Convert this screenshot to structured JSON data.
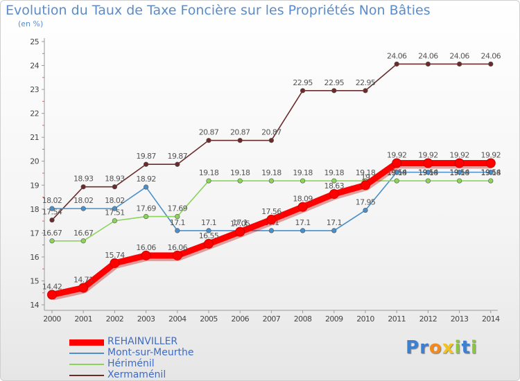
{
  "chart_data": {
    "type": "line",
    "title": "Evolution du Taux de Taxe Foncière sur les Propriétés Non Bâties",
    "ylabel": "(en %)",
    "xlabel": "",
    "ylim": [
      14,
      25
    ],
    "yticks": [
      "14",
      "15",
      "16",
      "17",
      "18",
      "19",
      "20",
      "21",
      "22",
      "23",
      "24",
      "25"
    ],
    "categories": [
      "2000",
      "2001",
      "2002",
      "2003",
      "2004",
      "2005",
      "2006",
      "2007",
      "2008",
      "2009",
      "2010",
      "2011",
      "2012",
      "2013",
      "2014"
    ],
    "series": [
      {
        "name": "Xermaménil",
        "color": "#6b2b2b",
        "values": [
          17.54,
          18.93,
          18.93,
          19.87,
          19.87,
          20.87,
          20.87,
          20.87,
          22.95,
          22.95,
          22.95,
          24.06,
          24.06,
          24.06,
          24.06
        ],
        "labels": [
          "17.54",
          "18.93",
          "18.93",
          "19.87",
          "19.87",
          "20.87",
          "20.87",
          "20.87",
          "22.95",
          "22.95",
          "22.95",
          "24.06",
          "24.06",
          "24.06",
          "24.06"
        ]
      },
      {
        "name": "Mont-sur-Meurthe",
        "color": "#4a8fc9",
        "values": [
          18.02,
          18.02,
          18.02,
          18.92,
          17.1,
          17.1,
          17.1,
          17.1,
          17.1,
          17.1,
          17.95,
          19.54,
          19.54,
          19.54,
          19.54
        ],
        "labels": [
          "18.02",
          "18.02",
          "18.02",
          "18.92",
          "17.1",
          "17.1",
          "17.1",
          "17.1",
          "17.1",
          "17.1",
          "17.95",
          "",
          "",
          "",
          ""
        ]
      },
      {
        "name": "Hériménil",
        "color": "#8cd35a",
        "values": [
          16.67,
          16.67,
          17.51,
          17.69,
          17.69,
          19.18,
          19.18,
          19.18,
          19.18,
          19.18,
          19.18,
          19.18,
          19.18,
          19.18,
          19.18
        ],
        "labels": [
          "16.67",
          "16.67",
          "17.51",
          "17.69",
          "17.69",
          "19.18",
          "19.18",
          "19.18",
          "19.18",
          "19.18",
          "19.18",
          "19.18",
          "19.18",
          "19.18",
          "19.18"
        ]
      },
      {
        "name": "REHAINVILLER",
        "color": "#ff0000",
        "values": [
          14.42,
          14.71,
          15.74,
          16.06,
          16.06,
          16.55,
          17.05,
          17.56,
          18.09,
          18.63,
          19.0,
          19.92,
          19.92,
          19.92,
          19.92
        ],
        "labels": [
          "14.42",
          "14.71",
          "15.74",
          "16.06",
          "16.06",
          "16.55",
          "17.05",
          "17.56",
          "18.09",
          "18.63",
          "19",
          "19.92",
          "19.92",
          "19.92",
          "19.92"
        ]
      }
    ],
    "overlap_labels": [
      "19.54",
      "19.54",
      "19.54",
      "19.54"
    ],
    "legend": [
      "REHAINVILLER",
      "Mont-sur-Meurthe",
      "Hériménil",
      "Xermaménil"
    ],
    "legend_position": "bottom-left",
    "grid": false
  },
  "logo": {
    "text": [
      "P",
      "r",
      "o",
      "x",
      "i",
      "t",
      "i"
    ],
    "colors": [
      "#3d7fd1",
      "#3d7fd1",
      "#f28a1e",
      "#f2c21e",
      "#8cc63f",
      "#3d7fd1",
      "#8cc63f"
    ]
  }
}
